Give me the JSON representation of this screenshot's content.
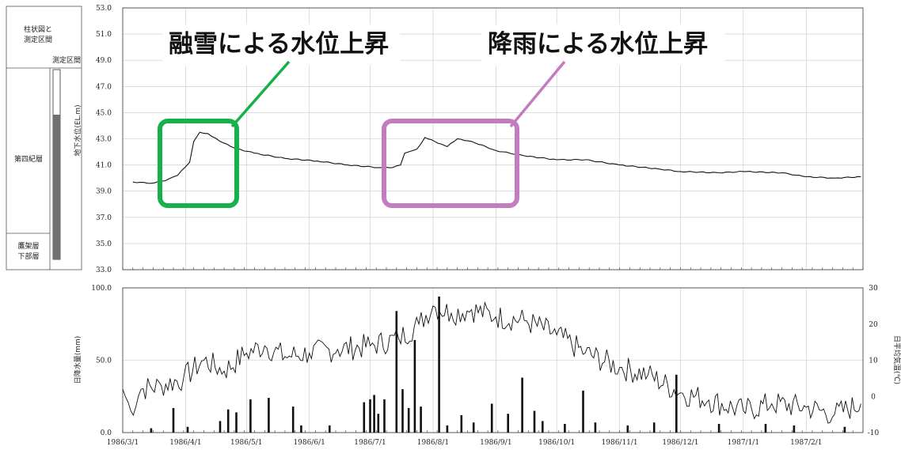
{
  "colors": {
    "green": "#17b04a",
    "purple": "#c47cc0",
    "line": "#111111"
  },
  "column": {
    "header": "柱状図と\n測定区間",
    "section_label": "測定区間",
    "layer_upper": "第四紀層",
    "layer_lower": "鷹架層\n下部層"
  },
  "annotations": [
    {
      "text": "融雪による水位上昇",
      "color": "#17b04a"
    },
    {
      "text": "降雨による水位上昇",
      "color": "#c47cc0"
    }
  ],
  "x_tick_labels": [
    "1986/3/1",
    "1986/4/1",
    "1986/5/1",
    "1986/6/1",
    "1986/7/1",
    "1986/8/1",
    "1986/9/1",
    "1986/10/1",
    "1986/11/1",
    "1986/12/1",
    "1987/1/1",
    "1987/2/1"
  ],
  "chart_data": [
    {
      "type": "line",
      "ylabel": "地下水位(EL.m)",
      "ylim": [
        33.0,
        53.0
      ],
      "y_ticks": [
        "53.0",
        "51.0",
        "49.0",
        "47.0",
        "45.0",
        "43.0",
        "41.0",
        "39.0",
        "37.0",
        "35.0",
        "33.0"
      ],
      "grid": true,
      "series": [
        {
          "x": [
            "1986/3/6",
            "1986/3/15",
            "1986/3/22",
            "1986/3/28",
            "1986/4/3",
            "1986/4/5",
            "1986/4/8",
            "1986/4/12",
            "1986/4/18",
            "1986/4/25",
            "1986/5/5",
            "1986/5/20",
            "1986/6/5",
            "1986/6/20",
            "1986/7/5",
            "1986/7/12",
            "1986/7/16",
            "1986/7/18",
            "1986/7/22",
            "1986/7/24",
            "1986/7/28",
            "1986/8/5",
            "1986/8/8",
            "1986/8/13",
            "1986/8/20",
            "1986/9/1",
            "1986/9/15",
            "1986/10/1",
            "1986/10/15",
            "1986/11/1",
            "1986/11/20",
            "1986/12/1",
            "1986/12/20",
            "1987/1/1",
            "1987/1/20",
            "1987/2/1",
            "1987/2/15",
            "1987/2/28"
          ],
          "y": [
            39.7,
            39.6,
            39.8,
            40.2,
            41.2,
            42.8,
            43.5,
            43.4,
            42.8,
            42.3,
            41.9,
            41.5,
            41.3,
            41.0,
            40.8,
            40.8,
            41.0,
            41.9,
            42.1,
            42.2,
            43.1,
            42.6,
            42.4,
            43.0,
            42.8,
            42.1,
            41.7,
            41.4,
            41.4,
            41.0,
            40.7,
            40.5,
            40.4,
            40.5,
            40.4,
            40.1,
            40.0,
            40.1
          ]
        }
      ]
    },
    {
      "type": "bar",
      "ylabel": "日降水量(mm)",
      "ylim": [
        0,
        100
      ],
      "y_ticks": [
        "100.0",
        "50.0",
        "0.0"
      ],
      "grid": true,
      "series": [
        {
          "x": [
            "1986/3/15",
            "1986/3/26",
            "1986/4/2",
            "1986/4/18",
            "1986/4/22",
            "1986/4/26",
            "1986/5/3",
            "1986/5/12",
            "1986/5/24",
            "1986/5/28",
            "1986/6/11",
            "1986/6/28",
            "1986/7/1",
            "1986/7/3",
            "1986/7/5",
            "1986/7/8",
            "1986/7/14",
            "1986/7/17",
            "1986/7/20",
            "1986/7/23",
            "1986/7/26",
            "1986/8/4",
            "1986/8/8",
            "1986/8/15",
            "1986/8/21",
            "1986/8/30",
            "1986/9/7",
            "1986/9/14",
            "1986/9/20",
            "1986/9/24",
            "1986/10/5",
            "1986/10/14",
            "1986/10/20",
            "1986/11/5",
            "1986/11/18",
            "1986/11/29",
            "1986/12/20",
            "1987/1/12",
            "1987/1/26",
            "1987/2/20"
          ],
          "values": [
            3,
            17,
            4,
            8,
            16,
            14,
            23,
            24,
            18,
            5,
            5,
            21,
            23,
            26,
            13,
            23,
            84,
            30,
            17,
            64,
            18,
            94,
            5,
            12,
            7,
            20,
            13,
            38,
            15,
            8,
            6,
            29,
            7,
            5,
            7,
            40,
            6,
            6,
            5,
            4
          ]
        }
      ]
    },
    {
      "type": "line",
      "ylabel": "日平均気温(℃)",
      "ylim": [
        -10,
        30
      ],
      "y_ticks": [
        "30",
        "20",
        "10",
        "0",
        "-10"
      ],
      "series": [
        {
          "x": [
            "1986/3/1",
            "1986/3/5",
            "1986/3/10",
            "1986/3/20",
            "1986/3/31",
            "1986/4/10",
            "1986/4/20",
            "1986/5/1",
            "1986/5/10",
            "1986/5/20",
            "1986/6/1",
            "1986/6/15",
            "1986/7/1",
            "1986/7/15",
            "1986/7/25",
            "1986/8/1",
            "1986/8/10",
            "1986/8/20",
            "1986/9/1",
            "1986/9/15",
            "1986/10/1",
            "1986/10/15",
            "1986/11/1",
            "1986/11/15",
            "1986/12/1",
            "1986/12/15",
            "1987/1/1",
            "1987/1/15",
            "1987/2/1",
            "1987/2/15",
            "1987/2/28"
          ],
          "y": [
            2,
            -4,
            2,
            3,
            5,
            10,
            7,
            12,
            14,
            11,
            12,
            13,
            14,
            16,
            20,
            25,
            23,
            24,
            22,
            21,
            17,
            12,
            8,
            6,
            1,
            -1,
            -4,
            -2,
            -3,
            -5,
            -2
          ]
        }
      ]
    }
  ]
}
